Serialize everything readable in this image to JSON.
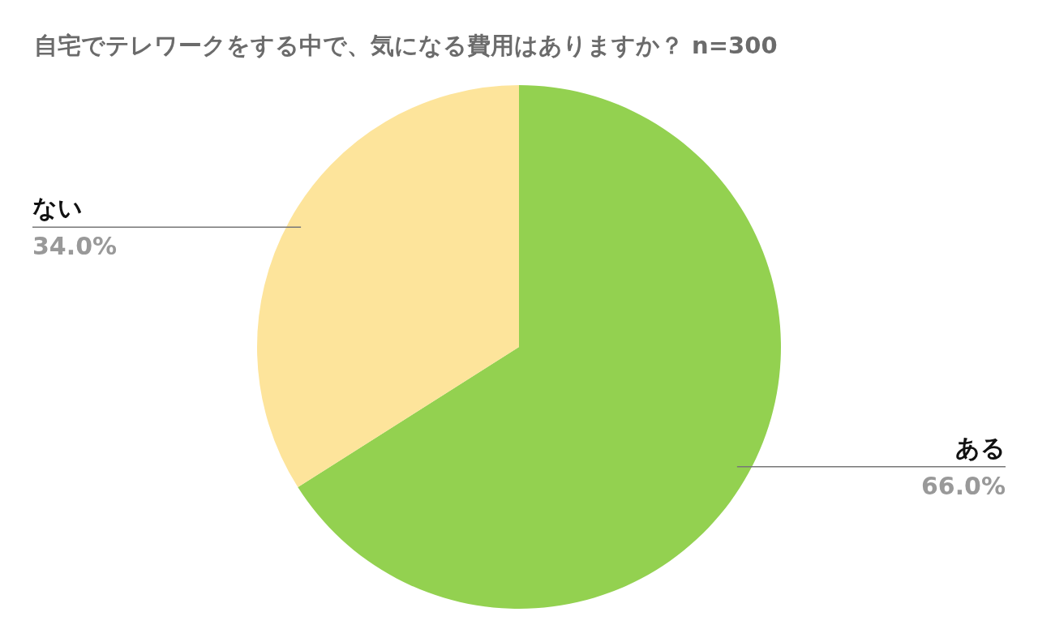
{
  "chart_data": {
    "type": "pie",
    "title": "自宅でテレワークをする中で、気になる費用はありますか？  n=300",
    "categories": [
      "ある",
      "ない"
    ],
    "values": [
      66.0,
      34.0
    ],
    "colors": [
      "#93d150",
      "#fde49b"
    ],
    "value_labels": [
      "66.0%",
      "34.0%"
    ]
  }
}
